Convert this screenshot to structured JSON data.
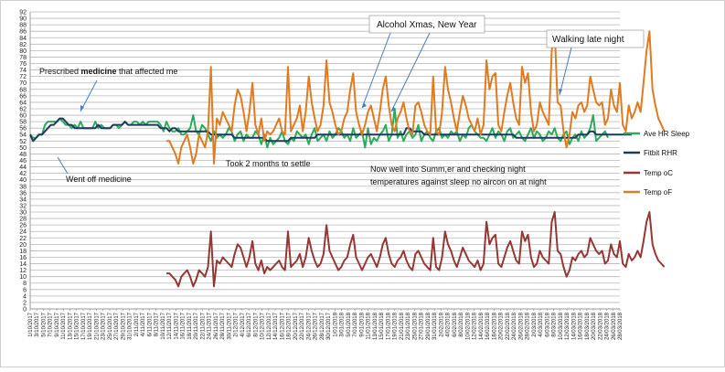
{
  "chart_data": {
    "type": "line",
    "title": "",
    "xlabel": "",
    "ylabel": "",
    "ylim": [
      0,
      92
    ],
    "y_ticks": [
      0,
      2,
      4,
      6,
      8,
      10,
      12,
      14,
      16,
      18,
      20,
      22,
      24,
      26,
      28,
      30,
      32,
      34,
      36,
      38,
      40,
      42,
      44,
      46,
      48,
      50,
      52,
      54,
      56,
      58,
      60,
      62,
      64,
      66,
      68,
      70,
      72,
      74,
      76,
      78,
      80,
      82,
      84,
      86,
      88,
      90,
      92
    ],
    "grid": true,
    "legend_position": "right",
    "x_ticks": [
      "1/10/2017",
      "3/10/2017",
      "5/10/2017",
      "7/10/2017",
      "9/10/2017",
      "11/10/2017",
      "13/10/2017",
      "15/10/2017",
      "17/10/2017",
      "19/10/2017",
      "21/10/2017",
      "23/10/2017",
      "25/10/2017",
      "27/10/2017",
      "29/10/2017",
      "31/10/2017",
      "2/11/2017",
      "4/11/2017",
      "6/11/2017",
      "8/11/2017",
      "10/11/2017",
      "12/11/2017",
      "14/11/2017",
      "16/11/2017",
      "18/11/2017",
      "20/11/2017",
      "22/11/2017",
      "24/11/2017",
      "26/11/2017",
      "28/11/2017",
      "30/11/2017",
      "2/12/2017",
      "4/12/2017",
      "6/12/2017",
      "8/12/2017",
      "10/12/2017",
      "12/12/2017",
      "14/12/2017",
      "16/12/2017",
      "18/12/2017",
      "20/12/2017",
      "22/12/2017",
      "24/12/2017",
      "26/12/2017",
      "28/12/2017",
      "30/12/2017",
      "1/01/2018",
      "3/01/2018",
      "5/01/2018",
      "7/01/2018",
      "9/01/2018",
      "11/01/2018",
      "13/01/2018",
      "15/01/2018",
      "17/01/2018",
      "19/01/2018",
      "21/01/2018",
      "23/01/2018",
      "25/01/2018",
      "27/01/2018",
      "29/01/2018",
      "31/01/2018",
      "2/02/2018",
      "4/02/2018",
      "6/02/2018",
      "8/02/2018",
      "10/02/2018",
      "12/02/2018",
      "14/02/2018",
      "16/02/2018",
      "18/02/2018",
      "20/02/2018",
      "22/02/2018",
      "24/02/2018",
      "26/02/2018",
      "28/02/2018",
      "2/03/2018",
      "4/03/2018",
      "6/03/2018",
      "8/03/2018",
      "10/03/2018",
      "12/03/2018",
      "14/03/2018",
      "16/03/2018",
      "18/03/2018",
      "20/03/2018",
      "22/03/2018",
      "24/03/2018",
      "26/03/2018",
      "28/03/2018"
    ],
    "series": [
      {
        "name": "Ave HR Sleep",
        "color": "#2eaa5c",
        "start_index": 0,
        "values": [
          54,
          53,
          53,
          54,
          54,
          57,
          58,
          58,
          58,
          58,
          59,
          58,
          57,
          57,
          56,
          57,
          56,
          58,
          56,
          56,
          56,
          56,
          58,
          56,
          57,
          56,
          56,
          56,
          57,
          57,
          56,
          57,
          58,
          57,
          57,
          58,
          58,
          57,
          58,
          57,
          58,
          58,
          58,
          58,
          57,
          55,
          58,
          56,
          55,
          55,
          56,
          54,
          54,
          55,
          56,
          60,
          55,
          54,
          57,
          56,
          54,
          52,
          55,
          53,
          54,
          53,
          54,
          56,
          55,
          52,
          54,
          55,
          52,
          54,
          53,
          53,
          55,
          54,
          51,
          54,
          50,
          53,
          51,
          52,
          53,
          55,
          52,
          51,
          53,
          52,
          55,
          54,
          53,
          54,
          51,
          54,
          56,
          52,
          53,
          54,
          52,
          55,
          53,
          54,
          56,
          55,
          53,
          54,
          52,
          56,
          53,
          54,
          55,
          50,
          56,
          51,
          53,
          52,
          54,
          55,
          57,
          52,
          54,
          62,
          53,
          55,
          52,
          54,
          55,
          53,
          54,
          57,
          52,
          54,
          55,
          53,
          52,
          55,
          56,
          53,
          54,
          53,
          55,
          54,
          55,
          52,
          54,
          53,
          56,
          57,
          55,
          54,
          53,
          53,
          52,
          54,
          56,
          53,
          55,
          54,
          52,
          55,
          56,
          53,
          54,
          55,
          53,
          52,
          54,
          56,
          53,
          55,
          54,
          52,
          53,
          55,
          54,
          56,
          53,
          52,
          54,
          55,
          51,
          53,
          54,
          52,
          55,
          53,
          54,
          56,
          60,
          52,
          53,
          54,
          55,
          53
        ]
      },
      {
        "name": "Fitbit RHR",
        "color": "#1f3a5f",
        "start_index": 0,
        "values": [
          54,
          52,
          53,
          54,
          54,
          55,
          56,
          57,
          57,
          58,
          59,
          59,
          58,
          57,
          57,
          56,
          56,
          56,
          56,
          56,
          56,
          56,
          56,
          57,
          56,
          56,
          56,
          56,
          57,
          57,
          57,
          57,
          58,
          57,
          57,
          57,
          57,
          57,
          57,
          57,
          57,
          57,
          57,
          57,
          56,
          56,
          56,
          55,
          56,
          56,
          55,
          55,
          55,
          55,
          55,
          55,
          55,
          55,
          55,
          55,
          55,
          54,
          54,
          54,
          54,
          54,
          54,
          54,
          54,
          53,
          53,
          53,
          53,
          53,
          53,
          53,
          53,
          53,
          53,
          53,
          52,
          52,
          52,
          52,
          52,
          52,
          52,
          52,
          53,
          53,
          53,
          53,
          53,
          53,
          53,
          53,
          53,
          54,
          54,
          54,
          54,
          54,
          54,
          54,
          54,
          54,
          54,
          54,
          54,
          54,
          54,
          54,
          54,
          54,
          54,
          54,
          54,
          54,
          54,
          54,
          54,
          54,
          54,
          54,
          54,
          54,
          54,
          56,
          56,
          55,
          55,
          55,
          55,
          54,
          54,
          54,
          54,
          54,
          54,
          54,
          54,
          54,
          54,
          54,
          54,
          54,
          54,
          54,
          54,
          54,
          54,
          54,
          54,
          54,
          54,
          54,
          54,
          54,
          54,
          54,
          54,
          54,
          54,
          54,
          53,
          53,
          53,
          53,
          53,
          53,
          53,
          53,
          53,
          53,
          53,
          53,
          53,
          53,
          53,
          53,
          53,
          53,
          53,
          53,
          53,
          54,
          54,
          54,
          54,
          55,
          55,
          54,
          54,
          54,
          54,
          54,
          54,
          54,
          54,
          54,
          54,
          54,
          54,
          54
        ]
      },
      {
        "name": "Temp oC",
        "color": "#953735",
        "start_index": 46,
        "values": [
          11,
          11,
          10,
          9,
          7,
          10,
          11,
          12,
          10,
          7,
          9,
          12,
          11,
          10,
          13,
          24,
          7,
          15,
          14,
          16,
          15,
          14,
          13,
          17,
          20,
          19,
          16,
          13,
          16,
          21,
          14,
          12,
          15,
          11,
          13,
          12,
          13,
          14,
          15,
          13,
          12,
          24,
          13,
          14,
          15,
          17,
          13,
          16,
          22,
          18,
          15,
          13,
          14,
          17,
          26,
          18,
          16,
          14,
          12,
          13,
          15,
          16,
          20,
          23,
          16,
          14,
          12,
          14,
          16,
          17,
          15,
          13,
          16,
          20,
          22,
          17,
          14,
          13,
          15,
          16,
          18,
          15,
          13,
          12,
          17,
          18,
          16,
          14,
          13,
          12,
          22,
          13,
          12,
          16,
          24,
          20,
          18,
          15,
          13,
          16,
          19,
          17,
          15,
          14,
          13,
          15,
          12,
          14,
          27,
          20,
          22,
          23,
          14,
          13,
          16,
          19,
          21,
          18,
          15,
          14,
          24,
          21,
          23,
          16,
          13,
          14,
          18,
          16,
          15,
          14,
          27,
          30,
          18,
          17,
          13,
          10,
          12,
          16,
          15,
          17,
          18,
          16,
          17,
          22,
          20,
          18,
          17,
          18,
          14,
          15,
          20,
          17,
          16,
          21,
          14,
          13,
          17,
          15,
          16,
          18,
          16,
          21,
          27,
          30,
          20,
          17,
          15,
          14,
          13
        ]
      },
      {
        "name": "Temp oF",
        "color": "#e07b1f",
        "start_index": 46,
        "values": [
          52,
          52,
          50,
          48,
          45,
          50,
          52,
          54,
          50,
          45,
          48,
          54,
          52,
          50,
          55,
          75,
          45,
          59,
          57,
          61,
          59,
          57,
          55,
          63,
          68,
          66,
          61,
          55,
          61,
          70,
          57,
          54,
          59,
          52,
          55,
          54,
          55,
          57,
          59,
          55,
          54,
          75,
          55,
          57,
          59,
          63,
          55,
          61,
          72,
          64,
          59,
          55,
          57,
          63,
          77,
          64,
          61,
          57,
          54,
          55,
          59,
          61,
          68,
          73,
          61,
          57,
          54,
          57,
          61,
          63,
          59,
          55,
          61,
          68,
          72,
          63,
          57,
          55,
          59,
          61,
          64,
          59,
          55,
          54,
          63,
          64,
          61,
          57,
          55,
          54,
          72,
          55,
          54,
          61,
          75,
          68,
          64,
          59,
          55,
          61,
          66,
          63,
          59,
          57,
          55,
          59,
          54,
          57,
          77,
          68,
          72,
          73,
          57,
          55,
          61,
          66,
          70,
          64,
          59,
          57,
          75,
          70,
          73,
          61,
          55,
          57,
          64,
          61,
          59,
          57,
          80,
          86,
          64,
          63,
          55,
          50,
          54,
          61,
          59,
          63,
          64,
          61,
          63,
          72,
          68,
          64,
          63,
          64,
          57,
          59,
          68,
          63,
          61,
          70,
          57,
          55,
          63,
          59,
          61,
          64,
          61,
          70,
          80,
          86,
          68,
          63,
          59,
          57,
          55
        ]
      }
    ],
    "annotations": [
      {
        "id": "alcohol",
        "text": "Alcohol  Xmas, New Year"
      },
      {
        "id": "walking",
        "text": "Walking late night"
      },
      {
        "id": "prescribed",
        "text_parts": [
          "Prescribed ",
          "medicine",
          " that affected me"
        ]
      },
      {
        "id": "went-off",
        "text": "Went off medicine"
      },
      {
        "id": "settle",
        "text": "Took 2 months to settle"
      },
      {
        "id": "summer",
        "lines": [
          "Now well into Summ,er and checking night",
          "temperatures against sleep no aircon on at night"
        ]
      }
    ]
  }
}
